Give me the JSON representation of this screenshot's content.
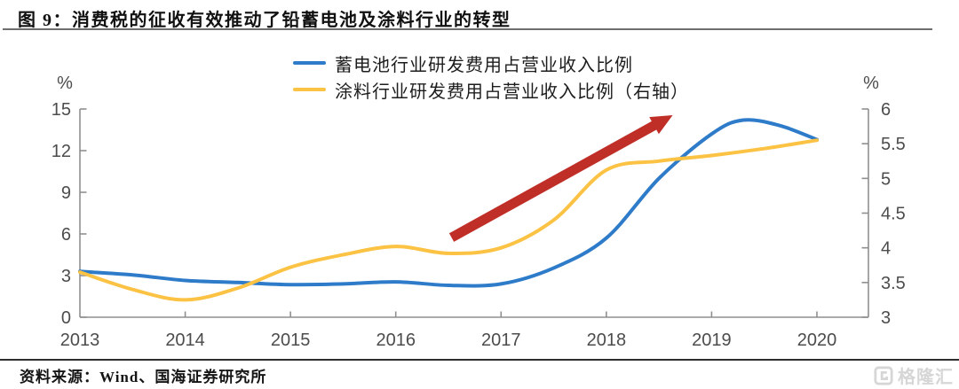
{
  "figure": {
    "title": "图 9：消费税的征收有效推动了铅蓄电池及涂料行业的转型",
    "source": "资料来源：Wind、国海证券研究所",
    "logo_text": "格隆汇"
  },
  "chart_data": {
    "type": "line",
    "title": "消费税的征收有效推动了铅蓄电池及涂料行业的转型",
    "grid": false,
    "legend_position": "top-center",
    "x_axis": {
      "ticks": [
        2013,
        2014,
        2015,
        2016,
        2017,
        2018,
        2019,
        2020
      ],
      "labels": [
        "2013",
        "2014",
        "2015",
        "2016",
        "2017",
        "2018",
        "2019",
        "2020"
      ],
      "range": [
        2013,
        2020.5
      ]
    },
    "left_axis": {
      "unit": "%",
      "range": [
        0,
        15
      ],
      "ticks": [
        0,
        3,
        6,
        9,
        12,
        15
      ],
      "labels": [
        "0",
        "3",
        "6",
        "9",
        "12",
        "15"
      ]
    },
    "right_axis": {
      "unit": "%",
      "range": [
        3,
        6
      ],
      "ticks": [
        3,
        3.5,
        4,
        4.5,
        5,
        5.5,
        6
      ],
      "labels": [
        "3",
        "3.5",
        "4",
        "4.5",
        "5",
        "5.5",
        "6"
      ]
    },
    "series": [
      {
        "name": "蓄电池行业研发费用占营业收入比例",
        "axis": "left",
        "color": "#2e7cc9",
        "points": [
          [
            2013,
            3.3
          ],
          [
            2013.5,
            3.05
          ],
          [
            2014,
            2.65
          ],
          [
            2014.5,
            2.5
          ],
          [
            2015,
            2.35
          ],
          [
            2015.5,
            2.4
          ],
          [
            2016,
            2.55
          ],
          [
            2016.5,
            2.3
          ],
          [
            2017,
            2.4
          ],
          [
            2017.5,
            3.55
          ],
          [
            2018,
            5.7
          ],
          [
            2018.5,
            10.0
          ],
          [
            2019,
            13.2
          ],
          [
            2019.3,
            14.2
          ],
          [
            2019.65,
            13.8
          ],
          [
            2020,
            12.8
          ]
        ]
      },
      {
        "name": "涂料行业研发费用占营业收入比例（右轴）",
        "axis": "right",
        "color": "#fbc243",
        "points": [
          [
            2013,
            3.65
          ],
          [
            2013.5,
            3.4
          ],
          [
            2014,
            3.25
          ],
          [
            2014.5,
            3.42
          ],
          [
            2015,
            3.72
          ],
          [
            2015.5,
            3.9
          ],
          [
            2016,
            4.02
          ],
          [
            2016.5,
            3.92
          ],
          [
            2017,
            4.0
          ],
          [
            2017.5,
            4.4
          ],
          [
            2018,
            5.12
          ],
          [
            2018.5,
            5.25
          ],
          [
            2019,
            5.33
          ],
          [
            2019.5,
            5.43
          ],
          [
            2020,
            5.55
          ]
        ]
      }
    ],
    "annotation_arrow": {
      "color": "#bf2e27",
      "from": {
        "x": 2016.53,
        "y_left": 5.74
      },
      "to": {
        "x": 2018.63,
        "y_left": 14.55
      }
    }
  },
  "colors": {
    "axis": "#8f8f8f",
    "tick_label": "#4c4c4c",
    "title_text": "#111111",
    "logo": "#d6d6d6"
  }
}
